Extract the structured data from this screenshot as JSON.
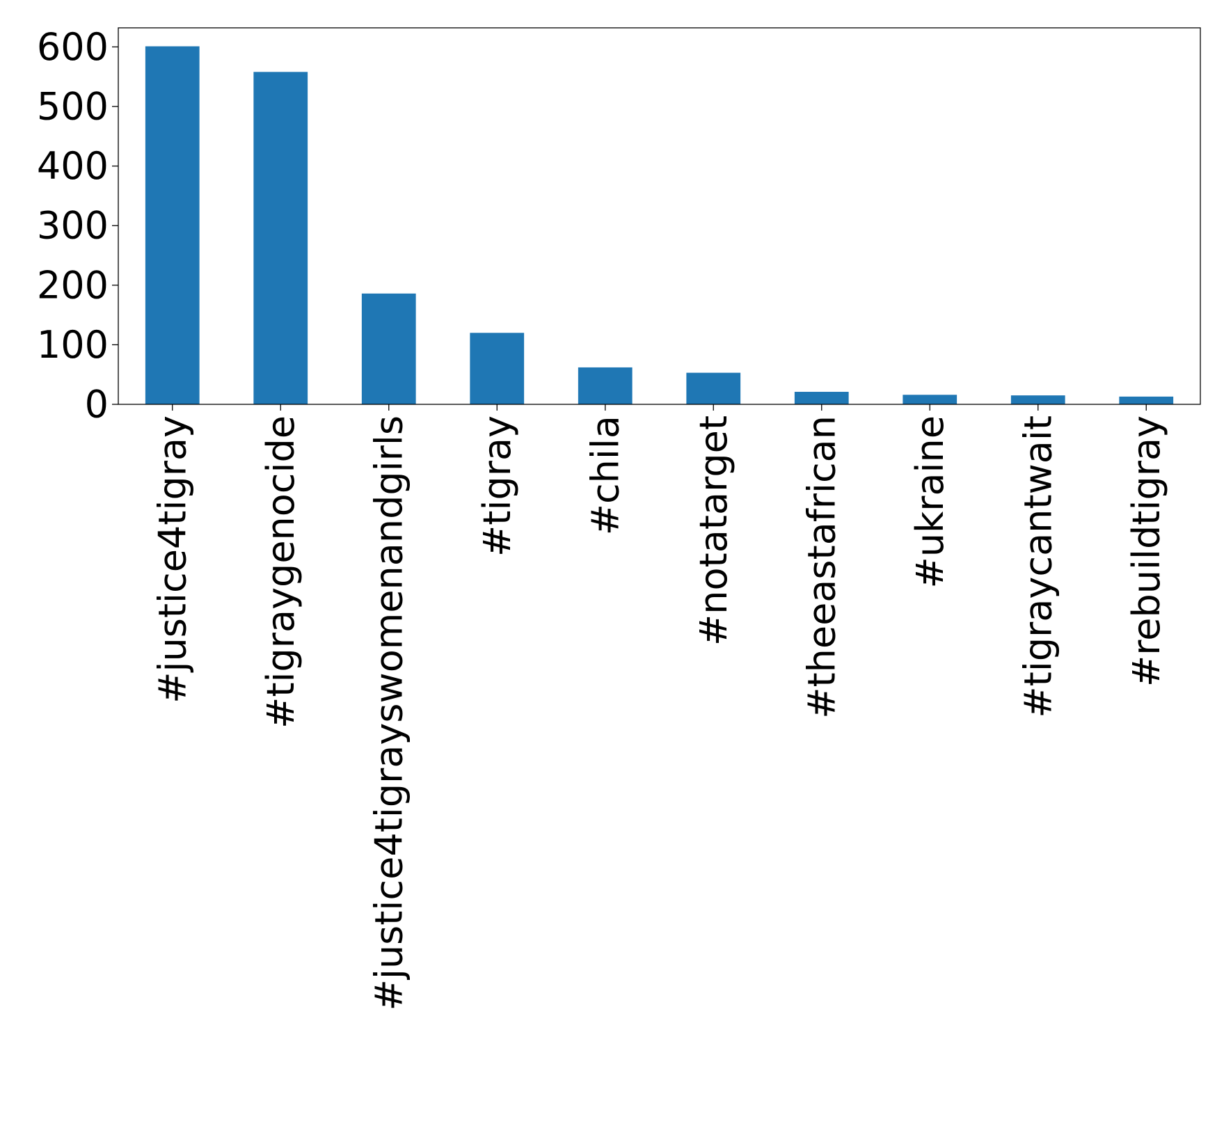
{
  "chart_data": {
    "type": "bar",
    "title": "",
    "xlabel": "",
    "ylabel": "",
    "categories": [
      "#justice4tigray",
      "#tigraygenocide",
      "#justice4tigrayswomenandgirls",
      "#tigray",
      "#chila",
      "#notatarget",
      "#theeastafrican",
      "#ukraine",
      "#tigraycantwait",
      "#rebuildtigray"
    ],
    "values": [
      601,
      558,
      186,
      120,
      62,
      53,
      21,
      16,
      15,
      13
    ],
    "ylim": [
      0,
      632
    ],
    "yticks": [
      0,
      100,
      200,
      300,
      400,
      500,
      600
    ],
    "grid": false,
    "legend": "none",
    "bar_color": "#1f77b4"
  }
}
